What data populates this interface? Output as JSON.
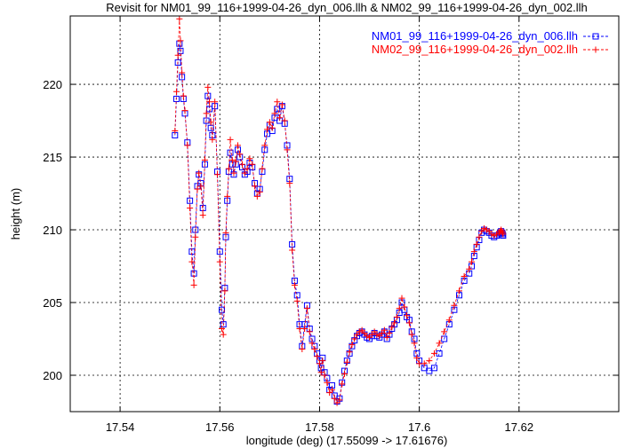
{
  "chart_data": {
    "type": "scatter",
    "title": "Revisit for NM01_99_116+1999-04-26_dyn_006.llh & NM02_99_116+1999-04-26_dyn_002.llh",
    "xlabel": "longitude (deg) (17.55099 -> 17.61676)",
    "ylabel": "height (m)",
    "xlim": [
      17.53,
      17.64
    ],
    "ylim": [
      197.5,
      224.7
    ],
    "xticks": [
      17.54,
      17.56,
      17.58,
      17.6,
      17.62
    ],
    "xtick_labels": [
      "17.54",
      "17.56",
      "17.58",
      "17.6",
      "17.62"
    ],
    "yticks": [
      200,
      205,
      210,
      215,
      220
    ],
    "ytick_labels": [
      "200",
      "205",
      "210",
      "215",
      "220"
    ],
    "grid": true,
    "legend_position": "top-right",
    "series": [
      {
        "name": "NM01_99_116+1999-04-26_dyn_006.llh",
        "legend_label": "NM01_99_116+1999-04-26_dyn_006.llh",
        "legend_sample": "-−□--",
        "color": "#0000ff",
        "marker": "square",
        "line": "dashed",
        "x": [
          17.551,
          17.5513,
          17.5516,
          17.5519,
          17.5521,
          17.5524,
          17.5527,
          17.553,
          17.5535,
          17.554,
          17.5544,
          17.5548,
          17.5551,
          17.5555,
          17.5558,
          17.5562,
          17.5566,
          17.557,
          17.5573,
          17.5576,
          17.5579,
          17.5582,
          17.5585,
          17.559,
          17.5595,
          17.56,
          17.5604,
          17.5607,
          17.561,
          17.5612,
          17.5615,
          17.5618,
          17.5621,
          17.5625,
          17.5628,
          17.5632,
          17.5636,
          17.564,
          17.5645,
          17.565,
          17.5655,
          17.566,
          17.5665,
          17.567,
          17.5675,
          17.568,
          17.5685,
          17.569,
          17.5695,
          17.57,
          17.5705,
          17.571,
          17.5715,
          17.572,
          17.5725,
          17.573,
          17.5735,
          17.574,
          17.5745,
          17.575,
          17.5755,
          17.576,
          17.5765,
          17.577,
          17.5775,
          17.578,
          17.5785,
          17.579,
          17.5795,
          17.58,
          17.5803,
          17.5806,
          17.581,
          17.5815,
          17.582,
          17.5825,
          17.583,
          17.5835,
          17.584,
          17.5845,
          17.585,
          17.5855,
          17.586,
          17.5865,
          17.587,
          17.5875,
          17.588,
          17.5885,
          17.589,
          17.5895,
          17.59,
          17.5905,
          17.591,
          17.5915,
          17.592,
          17.5925,
          17.593,
          17.5935,
          17.594,
          17.5945,
          17.595,
          17.5955,
          17.596,
          17.5965,
          17.597,
          17.5975,
          17.598,
          17.5985,
          17.599,
          17.5995,
          17.6,
          17.601,
          17.602,
          17.603,
          17.604,
          17.605,
          17.606,
          17.607,
          17.608,
          17.609,
          17.61,
          17.6105,
          17.611,
          17.6115,
          17.612,
          17.6125,
          17.613,
          17.6135,
          17.614,
          17.6145,
          17.615,
          17.6155,
          17.616,
          17.6162,
          17.6164,
          17.6166,
          17.6167,
          17.6168
        ],
        "y": [
          216.5,
          219.0,
          221.5,
          222.8,
          222.3,
          220.5,
          219.0,
          218.0,
          216.0,
          212.0,
          208.5,
          207.0,
          210.0,
          213.0,
          213.8,
          213.2,
          211.5,
          214.5,
          217.5,
          219.2,
          218.3,
          217.0,
          216.5,
          218.5,
          214.0,
          208.5,
          204.5,
          203.5,
          206.0,
          209.5,
          212.0,
          214.0,
          215.3,
          214.5,
          213.8,
          214.5,
          215.5,
          215.0,
          214.3,
          213.8,
          214.0,
          214.6,
          214.3,
          213.2,
          212.5,
          212.8,
          214.0,
          215.5,
          216.6,
          217.2,
          216.8,
          217.7,
          218.3,
          217.5,
          218.5,
          217.3,
          215.8,
          213.5,
          209.0,
          206.5,
          205.5,
          203.5,
          202.0,
          203.5,
          204.8,
          203.2,
          202.5,
          202.0,
          201.5,
          201.0,
          200.5,
          201.2,
          200.2,
          199.8,
          199.0,
          199.3,
          198.6,
          198.2,
          198.4,
          199.5,
          200.3,
          201.0,
          201.5,
          202.0,
          202.4,
          202.7,
          202.9,
          203.0,
          202.8,
          202.6,
          202.5,
          202.7,
          202.9,
          202.7,
          202.6,
          202.8,
          203.0,
          202.5,
          202.8,
          203.2,
          203.5,
          203.8,
          204.3,
          205.0,
          204.5,
          204.0,
          203.8,
          203.0,
          202.5,
          201.5,
          201.0,
          200.5,
          200.3,
          200.5,
          201.5,
          202.5,
          203.5,
          204.5,
          205.5,
          206.5,
          207.0,
          207.5,
          208.2,
          208.8,
          209.3,
          209.8,
          210.0,
          209.9,
          209.8,
          209.6,
          209.5,
          209.6,
          209.7,
          209.8,
          209.9,
          209.8,
          209.7,
          209.6
        ]
      },
      {
        "name": "NM02_99_116+1999-04-26_dyn_002.llh",
        "legend_label": "NM02_99_116+1999-04-26_dyn_002.llh",
        "legend_sample": "-−+−-",
        "color": "#ff0000",
        "marker": "plus",
        "line": "dashed",
        "x": [
          17.551,
          17.5513,
          17.5516,
          17.5519,
          17.5521,
          17.5524,
          17.5527,
          17.553,
          17.5535,
          17.554,
          17.5544,
          17.5548,
          17.5551,
          17.5555,
          17.5558,
          17.5562,
          17.5566,
          17.557,
          17.5573,
          17.5576,
          17.5579,
          17.5582,
          17.5585,
          17.559,
          17.5595,
          17.56,
          17.5604,
          17.5607,
          17.561,
          17.5612,
          17.5615,
          17.5618,
          17.5621,
          17.5625,
          17.5628,
          17.5632,
          17.5636,
          17.564,
          17.5645,
          17.565,
          17.5655,
          17.566,
          17.5665,
          17.567,
          17.5675,
          17.568,
          17.5685,
          17.569,
          17.5695,
          17.57,
          17.5705,
          17.571,
          17.5715,
          17.572,
          17.5725,
          17.573,
          17.5735,
          17.574,
          17.5745,
          17.575,
          17.5755,
          17.576,
          17.5765,
          17.577,
          17.5775,
          17.578,
          17.5785,
          17.579,
          17.5795,
          17.58,
          17.5803,
          17.5806,
          17.581,
          17.5815,
          17.582,
          17.5825,
          17.583,
          17.5835,
          17.584,
          17.5845,
          17.585,
          17.5855,
          17.586,
          17.5865,
          17.587,
          17.5875,
          17.588,
          17.5885,
          17.589,
          17.5895,
          17.59,
          17.5905,
          17.591,
          17.5915,
          17.592,
          17.5925,
          17.593,
          17.5935,
          17.594,
          17.5945,
          17.595,
          17.5955,
          17.596,
          17.5965,
          17.597,
          17.5975,
          17.598,
          17.5985,
          17.599,
          17.5995,
          17.6,
          17.601,
          17.602,
          17.603,
          17.604,
          17.605,
          17.606,
          17.607,
          17.608,
          17.609,
          17.61,
          17.6105,
          17.611,
          17.6115,
          17.612,
          17.6125,
          17.613,
          17.6135,
          17.614,
          17.6145,
          17.615,
          17.6155,
          17.616,
          17.6162,
          17.6164,
          17.6166,
          17.6167,
          17.6168
        ],
        "y": [
          216.8,
          219.5,
          222.0,
          224.5,
          223.0,
          220.8,
          219.2,
          218.2,
          215.8,
          211.5,
          207.8,
          206.2,
          209.5,
          212.8,
          213.9,
          213.0,
          211.0,
          214.8,
          218.0,
          219.8,
          218.8,
          217.4,
          216.2,
          218.8,
          213.8,
          207.8,
          203.2,
          202.8,
          205.8,
          209.8,
          212.3,
          214.2,
          216.2,
          214.8,
          213.9,
          214.7,
          215.8,
          215.2,
          214.5,
          213.9,
          214.2,
          214.9,
          214.5,
          213.0,
          212.3,
          212.6,
          214.2,
          215.8,
          216.9,
          217.4,
          217.0,
          218.0,
          218.8,
          217.7,
          218.6,
          217.5,
          215.5,
          213.2,
          208.6,
          206.2,
          205.1,
          203.2,
          201.8,
          203.2,
          204.6,
          203.0,
          202.2,
          201.8,
          201.3,
          200.8,
          200.2,
          201.0,
          200.0,
          199.5,
          198.8,
          199.0,
          198.4,
          198.1,
          198.3,
          199.4,
          200.1,
          200.9,
          201.6,
          202.1,
          202.5,
          202.8,
          203.0,
          203.1,
          202.9,
          202.7,
          202.6,
          202.8,
          203.0,
          202.8,
          202.7,
          202.9,
          203.1,
          202.6,
          202.9,
          203.3,
          203.6,
          204.0,
          204.6,
          205.3,
          204.7,
          204.1,
          203.6,
          202.8,
          202.2,
          201.2,
          200.8,
          200.8,
          201.0,
          201.5,
          202.2,
          203.0,
          203.8,
          204.8,
          205.8,
          206.8,
          207.3,
          207.8,
          208.5,
          209.0,
          209.5,
          209.9,
          210.1,
          210.0,
          209.9,
          209.7,
          209.6,
          209.7,
          209.8,
          209.9,
          210.0,
          209.9,
          209.8,
          209.7
        ]
      }
    ]
  }
}
